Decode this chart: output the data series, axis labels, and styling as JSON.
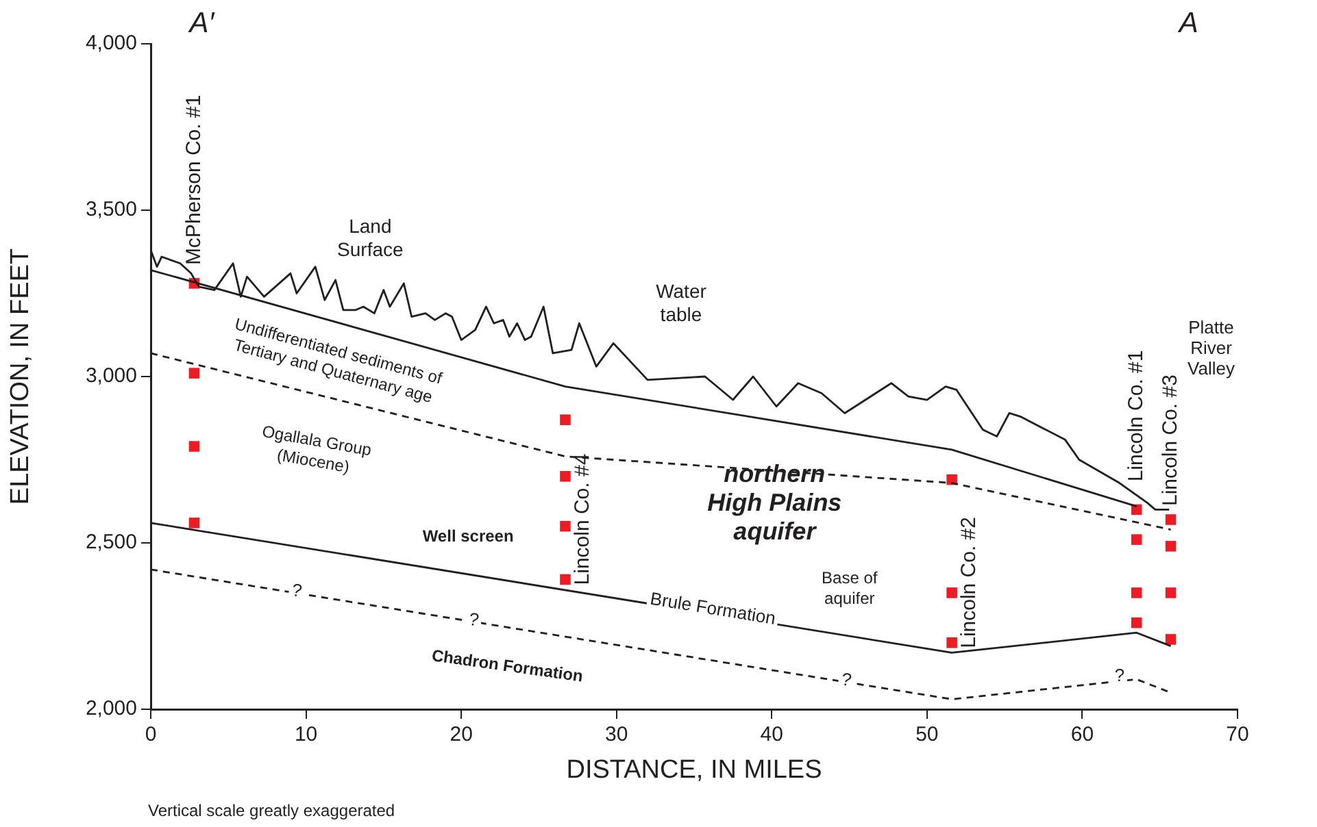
{
  "chart_data": {
    "type": "line",
    "xlabel": "DISTANCE, IN MILES",
    "ylabel": "ELEVATION, IN FEET",
    "xlim": [
      0,
      70
    ],
    "xticks": [
      0,
      10,
      20,
      30,
      40,
      50,
      60,
      70
    ],
    "ylim": [
      2000,
      4000
    ],
    "yticks": [
      {
        "value": 2000,
        "label": "2,000"
      },
      {
        "value": 2500,
        "label": "2,500"
      },
      {
        "value": 3000,
        "label": "3,000"
      },
      {
        "value": 3500,
        "label": "3,500"
      },
      {
        "value": 4000,
        "label": "4,000"
      }
    ],
    "grid": false,
    "legend": false,
    "series": [
      {
        "color": "#231f20",
        "line_style": "solid",
        "marker": "none",
        "x": [
          0,
          0.4,
          0.7,
          1.9,
          2.6,
          3.1,
          4.1,
          5.3,
          5.8,
          6.2,
          7.3,
          9.0,
          9.4,
          10.6,
          11.2,
          11.9,
          12.4,
          13.2,
          13.7,
          14.4,
          15.0,
          15.4,
          16.3,
          16.8,
          17.7,
          18.3,
          19.0,
          19.4,
          20.0,
          20.9,
          21.6,
          22.1,
          22.7,
          23.1,
          23.6,
          24.1,
          24.5,
          25.3,
          25.9,
          27.1,
          27.6,
          28.7,
          29.8,
          32.0,
          35.7,
          37.5,
          38.8,
          40.3,
          41.7,
          43.2,
          44.7,
          47.7,
          48.8,
          50.0,
          51.2,
          51.9,
          53.6,
          54.5,
          55.3,
          56.0,
          58.9,
          59.8,
          62.4,
          64.2,
          64.7,
          65.6
        ],
        "values": [
          3380,
          3330,
          3360,
          3340,
          3310,
          3270,
          3260,
          3340,
          3240,
          3300,
          3240,
          3310,
          3250,
          3330,
          3230,
          3290,
          3200,
          3200,
          3210,
          3190,
          3260,
          3210,
          3280,
          3180,
          3190,
          3170,
          3190,
          3180,
          3110,
          3140,
          3210,
          3160,
          3170,
          3120,
          3160,
          3110,
          3120,
          3210,
          3070,
          3080,
          3160,
          3030,
          3100,
          2990,
          3000,
          2930,
          3000,
          2910,
          2980,
          2950,
          2890,
          2980,
          2940,
          2930,
          2970,
          2960,
          2840,
          2820,
          2890,
          2880,
          2810,
          2750,
          2680,
          2620,
          2600,
          2600
        ]
      },
      {
        "color": "#231f20",
        "line_style": "solid",
        "marker": "none",
        "x": [
          0,
          26.7,
          51.6,
          63.5
        ],
        "values": [
          3320,
          2970,
          2780,
          2610
        ]
      },
      {
        "color": "#231f20",
        "line_style": "dashed",
        "marker": "none",
        "x": [
          0,
          26.7,
          51.6,
          65.7
        ],
        "values": [
          3070,
          2760,
          2680,
          2540
        ]
      },
      {
        "color": "#231f20",
        "line_style": "solid",
        "marker": "none",
        "x": [
          0,
          51.6,
          63.5,
          65.7
        ],
        "values": [
          2560,
          2170,
          2230,
          2190
        ]
      },
      {
        "color": "#231f20",
        "line_style": "dashed",
        "marker": "none",
        "x": [
          0,
          51.6,
          63.5,
          65.7
        ],
        "values": [
          2420,
          2030,
          2090,
          2050
        ]
      },
      {
        "type": "scatter",
        "name": "McPherson Co. #1",
        "color": "#ed1c24",
        "marker": "square",
        "x": [
          2.8,
          2.8,
          2.8,
          2.8
        ],
        "values": [
          3280,
          3010,
          2790,
          2560
        ]
      },
      {
        "type": "scatter",
        "name": "Lincoln Co. #4",
        "color": "#ed1c24",
        "marker": "square",
        "x": [
          26.7,
          26.7,
          26.7,
          26.7
        ],
        "values": [
          2870,
          2700,
          2550,
          2390
        ]
      },
      {
        "type": "scatter",
        "name": "Lincoln Co. #2",
        "color": "#ed1c24",
        "marker": "square",
        "x": [
          51.6,
          51.6,
          51.6
        ],
        "values": [
          2690,
          2350,
          2200
        ]
      },
      {
        "type": "scatter",
        "name": "Lincoln Co. #1",
        "color": "#ed1c24",
        "marker": "square",
        "x": [
          63.5,
          63.5,
          63.5,
          63.5
        ],
        "values": [
          2600,
          2510,
          2350,
          2260
        ]
      },
      {
        "type": "scatter",
        "name": "Lincoln Co. #3",
        "color": "#ed1c24",
        "marker": "square",
        "x": [
          65.7,
          65.7,
          65.7,
          65.7
        ],
        "values": [
          2570,
          2490,
          2350,
          2210
        ]
      }
    ],
    "annotations": [
      "A′",
      "A",
      "Land\nSurface",
      "Water\ntable",
      "Undifferentiated sediments of\nTertiary and Quaternary age",
      "Ogallala Group\n(Miocene)",
      "northern\nHigh Plains\naquifer",
      "Well screen",
      "Base of\naquifer",
      "Chadron Formation",
      {
        "text": "Brule Formation",
        "x": 36.2,
        "y": 2300
      },
      {
        "text": "?",
        "x": 9.4,
        "y": 2354
      },
      {
        "text": "?",
        "x": 20.8,
        "y": 2267
      },
      {
        "text": "?",
        "x": 44.8,
        "y": 2086
      },
      {
        "text": "?",
        "x": 62.4,
        "y": 2099
      },
      {
        "text": "Platte\nRiver\nValley",
        "x": 68.3,
        "y": 3082
      },
      "Vertical scale greatly exaggerated"
    ]
  }
}
